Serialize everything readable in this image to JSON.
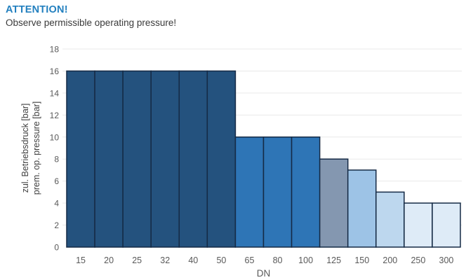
{
  "header": {
    "title": "ATTENTION!",
    "subtitle": "Observe permissible operating pressure!"
  },
  "colors": {
    "title_blue": "#2380BF",
    "subtitle_text": "#3A3A3A",
    "tick_label": "#595959",
    "axis_label": "#404040",
    "bar_border": "#152A45",
    "gridline": "#E9E9E9",
    "background": "#FFFFFF"
  },
  "chart_data": {
    "type": "bar",
    "categories": [
      "15",
      "20",
      "25",
      "32",
      "40",
      "50",
      "65",
      "80",
      "100",
      "125",
      "150",
      "200",
      "250",
      "300"
    ],
    "values": [
      16,
      16,
      16,
      16,
      16,
      16,
      10,
      10,
      10,
      8,
      7,
      5,
      4,
      4
    ],
    "bar_colors": [
      "#24527E",
      "#24527E",
      "#24527E",
      "#24527E",
      "#24527E",
      "#24527E",
      "#2E75B6",
      "#2E75B6",
      "#2E75B6",
      "#8497B0",
      "#9DC3E6",
      "#BDD7EE",
      "#DEEBF7",
      "#DEEBF7"
    ],
    "title": "",
    "xlabel": "DN",
    "ylabel_lines": [
      "zul. Betriebsdruck [bar]",
      "prem. op. pressure [bar]"
    ],
    "ylim": [
      0,
      18
    ],
    "ytick_step": 2,
    "grid": true,
    "legend_position": "none",
    "bar_gap": 0
  }
}
